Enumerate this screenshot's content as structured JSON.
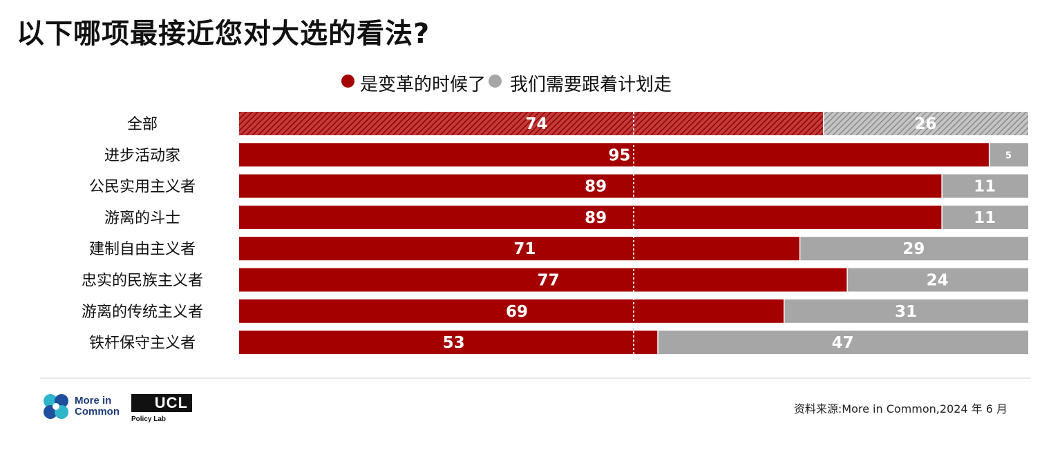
{
  "title": "以下哪项最接近您对大选的看法?",
  "legend": {
    "red": "是变革的时候了",
    "grey": "我们需要跟着计划走"
  },
  "colors": {
    "red": "#a50000",
    "grey": "#a6a6a6",
    "divider": "#e8e8e8",
    "text": "#111111"
  },
  "chart_data": {
    "type": "bar",
    "orientation": "horizontal",
    "stacked": true,
    "categories": [
      "全部",
      "进步活动家",
      "公民实用主义者",
      "游离的斗士",
      "建制自由主义者",
      "忠实的民族主义者",
      "游离的传统主义者",
      "铁杆保守主义者"
    ],
    "series": [
      {
        "name": "是变革的时候了",
        "color": "#a50000",
        "values": [
          74,
          95,
          89,
          89,
          71,
          77,
          69,
          53
        ]
      },
      {
        "name": "我们需要跟着计划走",
        "color": "#a6a6a6",
        "values": [
          26,
          5,
          11,
          11,
          29,
          24,
          31,
          47
        ]
      }
    ],
    "xlim": [
      0,
      100
    ],
    "reference_line": 50,
    "hatched_categories": [
      "全部"
    ],
    "data_labels": true
  },
  "source": "资料来源:More in Common,2024 年 6 月",
  "logos": {
    "more_in_common": "More in\nCommon",
    "ucl": "UCL",
    "ucl_sub": "Policy Lab"
  }
}
